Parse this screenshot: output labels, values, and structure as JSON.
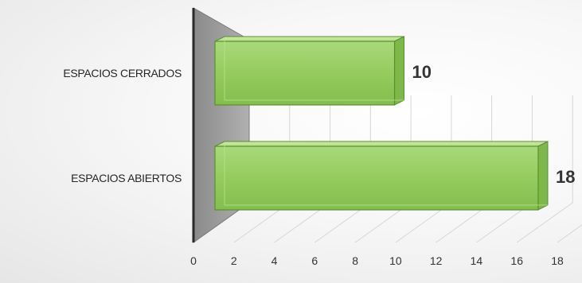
{
  "chart_data": {
    "type": "bar",
    "orientation": "horizontal",
    "three_d": true,
    "categories": [
      "ESPACIOS CERRADOS",
      "ESPACIOS ABIERTOS"
    ],
    "values": [
      10,
      18
    ],
    "data_labels": [
      "10",
      "18"
    ],
    "xlim": [
      0,
      18
    ],
    "x_ticks": [
      "0",
      "2",
      "4",
      "6",
      "8",
      "10",
      "12",
      "14",
      "16",
      "18"
    ],
    "grid": true,
    "legend": "none",
    "bar_color": "#92d050",
    "bar_edge_color": "#5a8f2e"
  }
}
